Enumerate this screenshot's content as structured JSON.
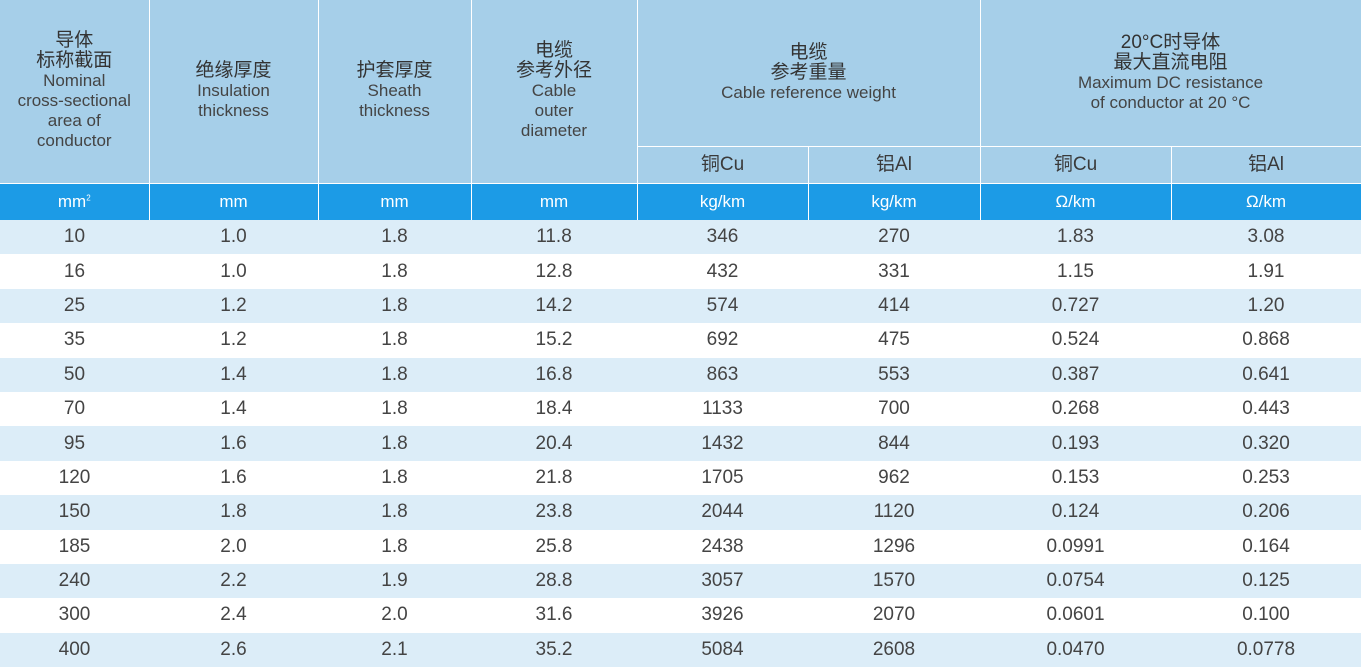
{
  "headers": {
    "area": {
      "zh1": "导体",
      "zh2": "标称截面",
      "en1": "Nominal",
      "en2": "cross-sectional",
      "en3": "area of",
      "en4": "conductor"
    },
    "insulation": {
      "zh": "绝缘厚度",
      "en1": "Insulation",
      "en2": "thickness"
    },
    "sheath": {
      "zh": "护套厚度",
      "en1": "Sheath",
      "en2": "thickness"
    },
    "diameter": {
      "zh1": "电缆",
      "zh2": "参考外径",
      "en1": "Cable",
      "en2": "outer",
      "en3": "diameter"
    },
    "weight": {
      "zh1": "电缆",
      "zh2": "参考重量",
      "en": "Cable reference weight",
      "sub_cu": "铜Cu",
      "sub_al": "铝Al"
    },
    "resistance": {
      "zh1": "20°C时导体",
      "zh2": "最大直流电阻",
      "en1": "Maximum DC resistance",
      "en2": "of conductor at 20 °C",
      "sub_cu": "铜Cu",
      "sub_al": "铝Al"
    }
  },
  "units": {
    "area": "mm",
    "area_sup": "2",
    "insulation": "mm",
    "sheath": "mm",
    "diameter": "mm",
    "weight_cu": "kg/km",
    "weight_al": "kg/km",
    "res_cu": "Ω/km",
    "res_al": "Ω/km"
  },
  "rows": [
    [
      "10",
      "1.0",
      "1.8",
      "11.8",
      "346",
      "270",
      "1.83",
      "3.08"
    ],
    [
      "16",
      "1.0",
      "1.8",
      "12.8",
      "432",
      "331",
      "1.15",
      "1.91"
    ],
    [
      "25",
      "1.2",
      "1.8",
      "14.2",
      "574",
      "414",
      "0.727",
      "1.20"
    ],
    [
      "35",
      "1.2",
      "1.8",
      "15.2",
      "692",
      "475",
      "0.524",
      "0.868"
    ],
    [
      "50",
      "1.4",
      "1.8",
      "16.8",
      "863",
      "553",
      "0.387",
      "0.641"
    ],
    [
      "70",
      "1.4",
      "1.8",
      "18.4",
      "1133",
      "700",
      "0.268",
      "0.443"
    ],
    [
      "95",
      "1.6",
      "1.8",
      "20.4",
      "1432",
      "844",
      "0.193",
      "0.320"
    ],
    [
      "120",
      "1.6",
      "1.8",
      "21.8",
      "1705",
      "962",
      "0.153",
      "0.253"
    ],
    [
      "150",
      "1.8",
      "1.8",
      "23.8",
      "2044",
      "1120",
      "0.124",
      "0.206"
    ],
    [
      "185",
      "2.0",
      "1.8",
      "25.8",
      "2438",
      "1296",
      "0.0991",
      "0.164"
    ],
    [
      "240",
      "2.2",
      "1.9",
      "28.8",
      "3057",
      "1570",
      "0.0754",
      "0.125"
    ],
    [
      "300",
      "2.4",
      "2.0",
      "31.6",
      "3926",
      "2070",
      "0.0601",
      "0.100"
    ],
    [
      "400",
      "2.6",
      "2.1",
      "35.2",
      "5084",
      "2608",
      "0.0470",
      "0.0778"
    ]
  ],
  "colors": {
    "header_bg": "#a6cfe9",
    "unit_bar": "#1c9be6",
    "row_stripe": "#dcedf8"
  }
}
